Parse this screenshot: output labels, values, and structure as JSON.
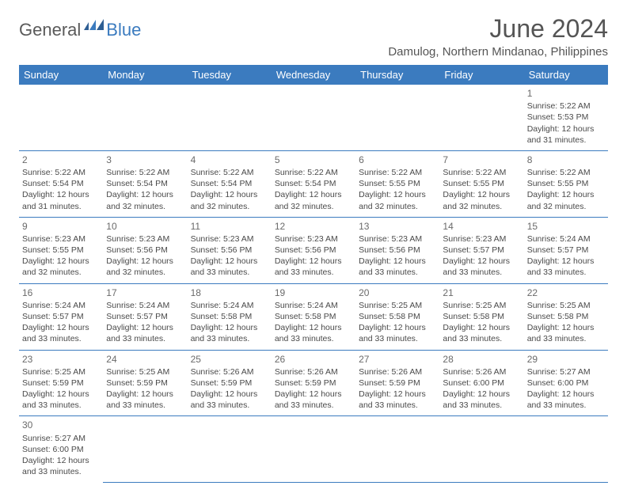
{
  "brand": {
    "text1": "General",
    "text2": "Blue"
  },
  "title": "June 2024",
  "location": "Damulog, Northern Mindanao, Philippines",
  "header_color": "#3b7bbf",
  "border_color": "#3b7bbf",
  "text_color": "#4a4a4a",
  "weekdays": [
    "Sunday",
    "Monday",
    "Tuesday",
    "Wednesday",
    "Thursday",
    "Friday",
    "Saturday"
  ],
  "cells": [
    [
      null,
      null,
      null,
      null,
      null,
      null,
      {
        "n": "1",
        "sr": "5:22 AM",
        "ss": "5:53 PM",
        "dl": "12 hours and 31 minutes."
      }
    ],
    [
      {
        "n": "2",
        "sr": "5:22 AM",
        "ss": "5:54 PM",
        "dl": "12 hours and 31 minutes."
      },
      {
        "n": "3",
        "sr": "5:22 AM",
        "ss": "5:54 PM",
        "dl": "12 hours and 32 minutes."
      },
      {
        "n": "4",
        "sr": "5:22 AM",
        "ss": "5:54 PM",
        "dl": "12 hours and 32 minutes."
      },
      {
        "n": "5",
        "sr": "5:22 AM",
        "ss": "5:54 PM",
        "dl": "12 hours and 32 minutes."
      },
      {
        "n": "6",
        "sr": "5:22 AM",
        "ss": "5:55 PM",
        "dl": "12 hours and 32 minutes."
      },
      {
        "n": "7",
        "sr": "5:22 AM",
        "ss": "5:55 PM",
        "dl": "12 hours and 32 minutes."
      },
      {
        "n": "8",
        "sr": "5:22 AM",
        "ss": "5:55 PM",
        "dl": "12 hours and 32 minutes."
      }
    ],
    [
      {
        "n": "9",
        "sr": "5:23 AM",
        "ss": "5:55 PM",
        "dl": "12 hours and 32 minutes."
      },
      {
        "n": "10",
        "sr": "5:23 AM",
        "ss": "5:56 PM",
        "dl": "12 hours and 32 minutes."
      },
      {
        "n": "11",
        "sr": "5:23 AM",
        "ss": "5:56 PM",
        "dl": "12 hours and 33 minutes."
      },
      {
        "n": "12",
        "sr": "5:23 AM",
        "ss": "5:56 PM",
        "dl": "12 hours and 33 minutes."
      },
      {
        "n": "13",
        "sr": "5:23 AM",
        "ss": "5:56 PM",
        "dl": "12 hours and 33 minutes."
      },
      {
        "n": "14",
        "sr": "5:23 AM",
        "ss": "5:57 PM",
        "dl": "12 hours and 33 minutes."
      },
      {
        "n": "15",
        "sr": "5:24 AM",
        "ss": "5:57 PM",
        "dl": "12 hours and 33 minutes."
      }
    ],
    [
      {
        "n": "16",
        "sr": "5:24 AM",
        "ss": "5:57 PM",
        "dl": "12 hours and 33 minutes."
      },
      {
        "n": "17",
        "sr": "5:24 AM",
        "ss": "5:57 PM",
        "dl": "12 hours and 33 minutes."
      },
      {
        "n": "18",
        "sr": "5:24 AM",
        "ss": "5:58 PM",
        "dl": "12 hours and 33 minutes."
      },
      {
        "n": "19",
        "sr": "5:24 AM",
        "ss": "5:58 PM",
        "dl": "12 hours and 33 minutes."
      },
      {
        "n": "20",
        "sr": "5:25 AM",
        "ss": "5:58 PM",
        "dl": "12 hours and 33 minutes."
      },
      {
        "n": "21",
        "sr": "5:25 AM",
        "ss": "5:58 PM",
        "dl": "12 hours and 33 minutes."
      },
      {
        "n": "22",
        "sr": "5:25 AM",
        "ss": "5:58 PM",
        "dl": "12 hours and 33 minutes."
      }
    ],
    [
      {
        "n": "23",
        "sr": "5:25 AM",
        "ss": "5:59 PM",
        "dl": "12 hours and 33 minutes."
      },
      {
        "n": "24",
        "sr": "5:25 AM",
        "ss": "5:59 PM",
        "dl": "12 hours and 33 minutes."
      },
      {
        "n": "25",
        "sr": "5:26 AM",
        "ss": "5:59 PM",
        "dl": "12 hours and 33 minutes."
      },
      {
        "n": "26",
        "sr": "5:26 AM",
        "ss": "5:59 PM",
        "dl": "12 hours and 33 minutes."
      },
      {
        "n": "27",
        "sr": "5:26 AM",
        "ss": "5:59 PM",
        "dl": "12 hours and 33 minutes."
      },
      {
        "n": "28",
        "sr": "5:26 AM",
        "ss": "6:00 PM",
        "dl": "12 hours and 33 minutes."
      },
      {
        "n": "29",
        "sr": "5:27 AM",
        "ss": "6:00 PM",
        "dl": "12 hours and 33 minutes."
      }
    ],
    [
      {
        "n": "30",
        "sr": "5:27 AM",
        "ss": "6:00 PM",
        "dl": "12 hours and 33 minutes."
      },
      null,
      null,
      null,
      null,
      null,
      null
    ]
  ],
  "labels": {
    "sunrise": "Sunrise:",
    "sunset": "Sunset:",
    "daylight": "Daylight:"
  }
}
